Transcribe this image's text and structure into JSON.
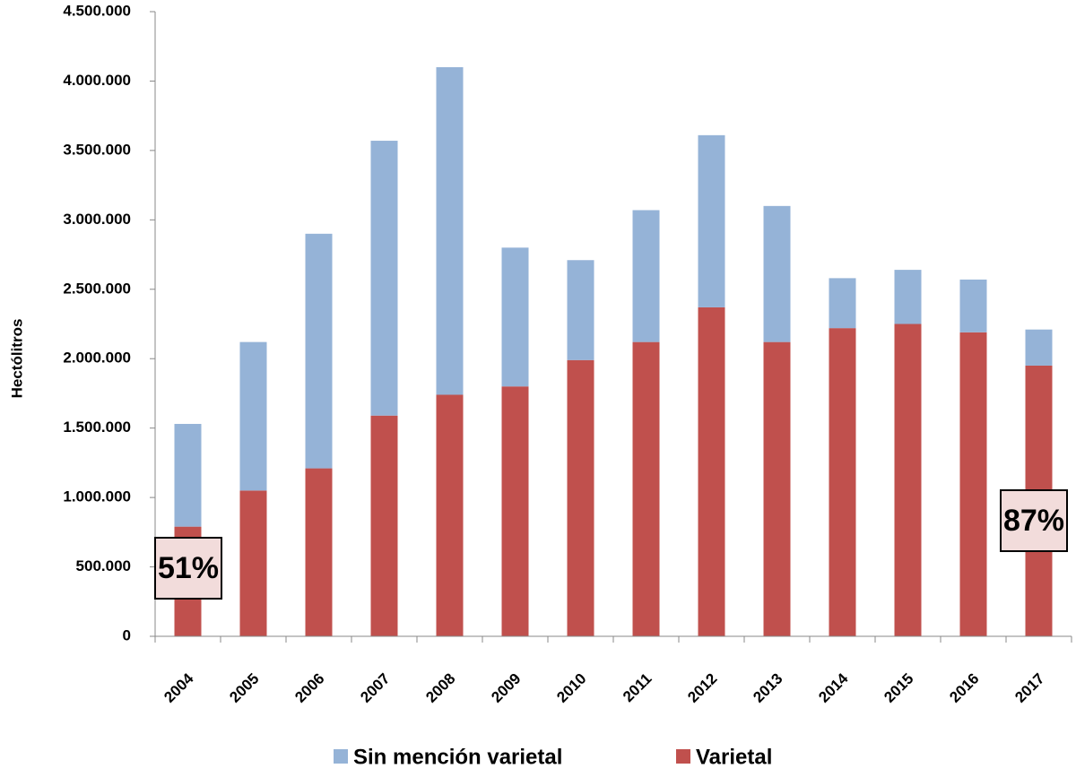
{
  "chart_data": {
    "type": "stacked_bar",
    "y_label": "Hectólitros",
    "categories": [
      "2004",
      "2005",
      "2006",
      "2007",
      "2008",
      "2009",
      "2010",
      "2011",
      "2012",
      "2013",
      "2014",
      "2015",
      "2016",
      "2017"
    ],
    "series": [
      {
        "name": "Sin mención varietal",
        "color": "#95b3d7",
        "values": [
          740000,
          1070000,
          1690000,
          1980000,
          2360000,
          1000000,
          720000,
          950000,
          1240000,
          980000,
          360000,
          390000,
          380000,
          260000
        ]
      },
      {
        "name": "Varietal",
        "color": "#c0504d",
        "values": [
          790000,
          1050000,
          1210000,
          1590000,
          1740000,
          1800000,
          1990000,
          2120000,
          2370000,
          2120000,
          2220000,
          2250000,
          2190000,
          1950000
        ]
      }
    ],
    "ylim": [
      0,
      4500000
    ],
    "yticks": [
      0,
      {
        "value": 500000,
        "label": "500.000"
      },
      {
        "value": 1000000,
        "label": "1.000.000"
      },
      {
        "value": 1500000,
        "label": "1.500.000"
      },
      {
        "value": 2000000,
        "label": "2.000.000"
      },
      {
        "value": 2500000,
        "label": "2.500.000"
      },
      {
        "value": 3000000,
        "label": "3.000.000"
      },
      {
        "value": 3500000,
        "label": "3.500.000"
      },
      {
        "value": 4000000,
        "label": "4.000.000"
      },
      {
        "value": 4500000,
        "label": "4.500.000"
      }
    ],
    "annotations": [
      "51%",
      "87%"
    ],
    "legend": "bottom"
  }
}
